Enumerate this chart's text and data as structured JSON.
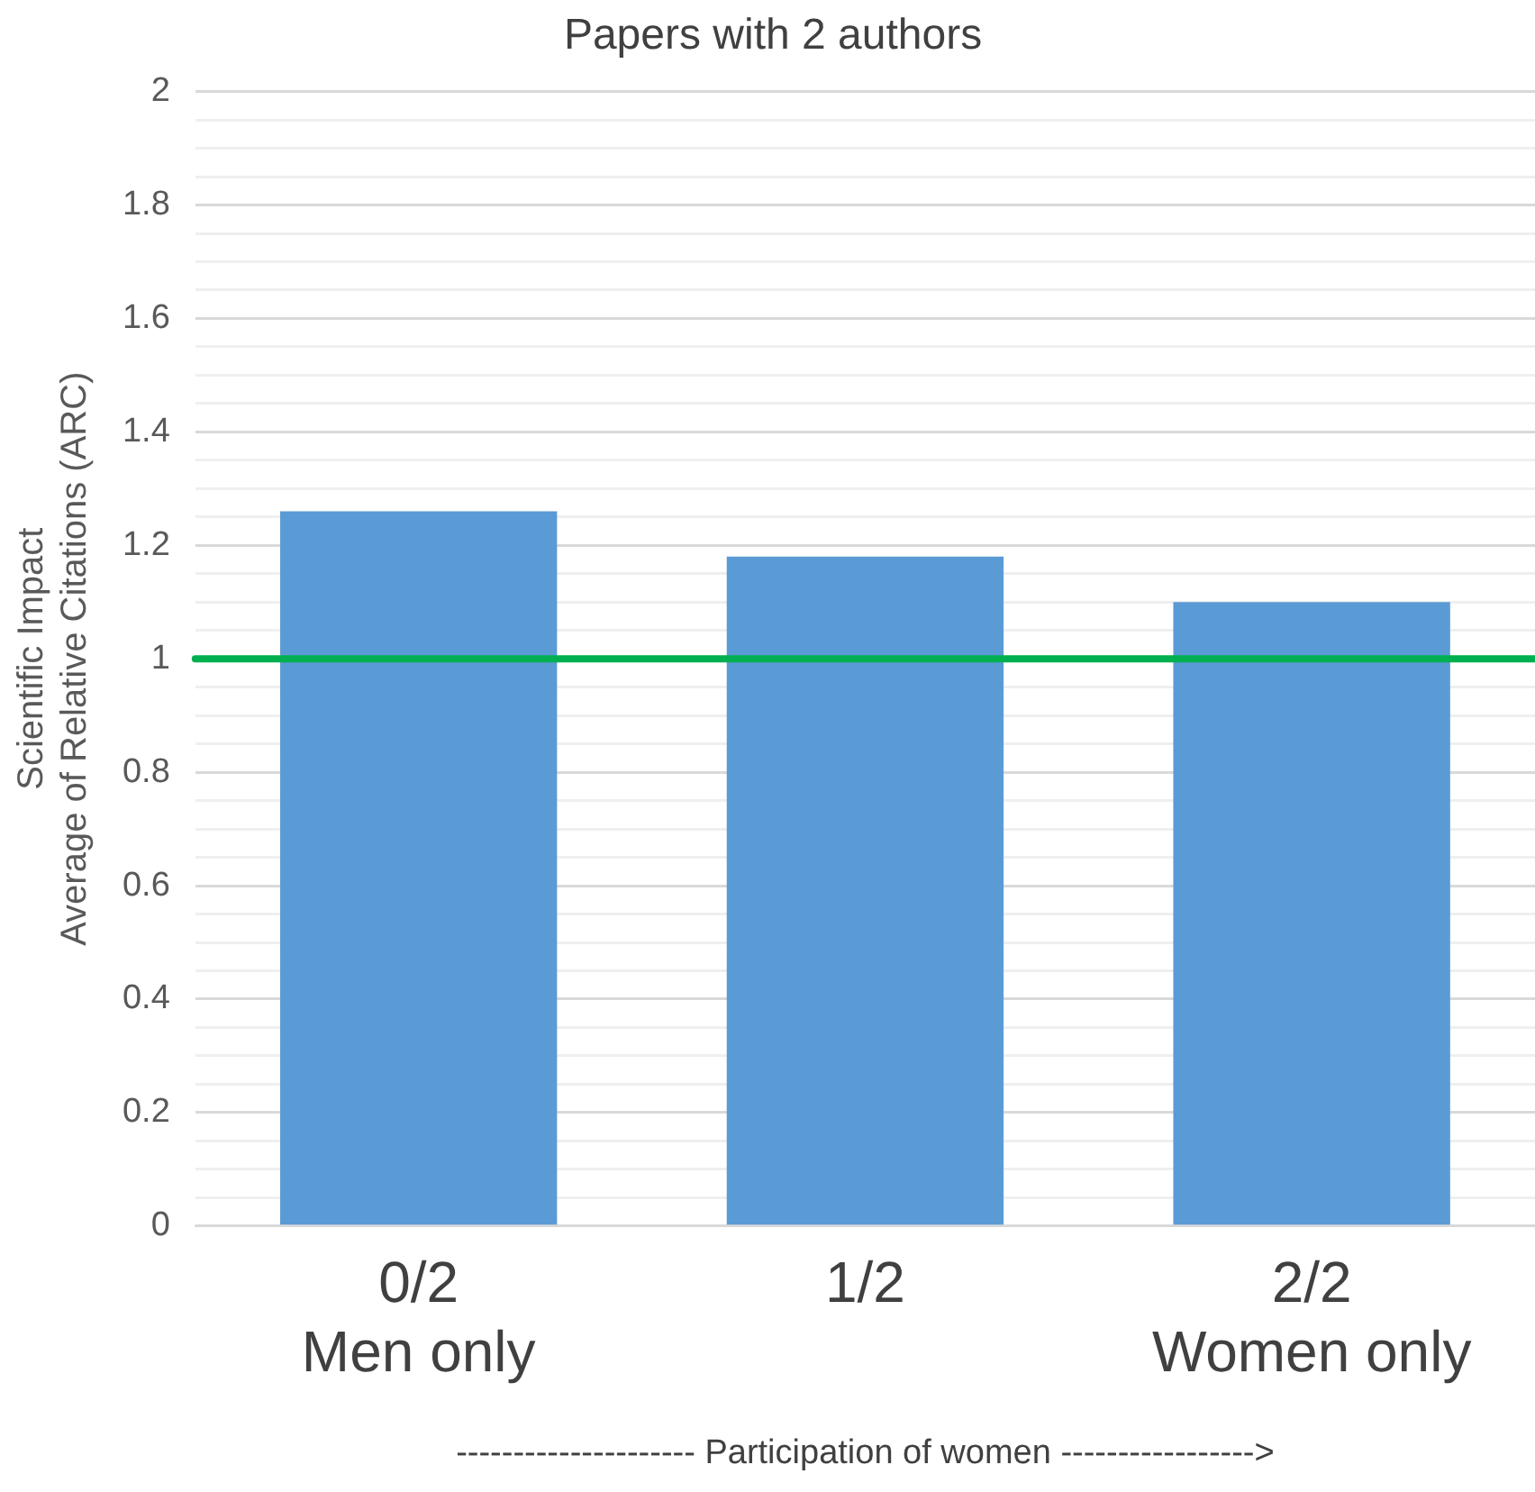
{
  "chart_data": {
    "type": "bar",
    "title": "Papers with 2 authors",
    "xlabel": "--------------------- Participation of women ----------------->",
    "ylabel": "Scientific Impact\nAverage of Relative Citations (ARC)",
    "categories": [
      "0/2\nMen only",
      "1/2",
      "2/2\nWomen only"
    ],
    "values": [
      1.26,
      1.18,
      1.1
    ],
    "color": "#5b9bd5",
    "ylim": [
      0,
      2
    ],
    "yticks": [
      0,
      {
        "value": 0.05,
        "label": null
      },
      {
        "value": 0.1,
        "label": null
      },
      {
        "value": 0.15,
        "label": null
      },
      0.2,
      {
        "value": 0.25,
        "label": null
      },
      {
        "value": 0.3,
        "label": null
      },
      {
        "value": 0.35,
        "label": null
      },
      0.4,
      {
        "value": 0.45,
        "label": null
      },
      {
        "value": 0.5,
        "label": null
      },
      {
        "value": 0.55,
        "label": null
      },
      0.6,
      {
        "value": 0.65,
        "label": null
      },
      {
        "value": 0.7,
        "label": null
      },
      {
        "value": 0.75,
        "label": null
      },
      0.8,
      {
        "value": 0.85,
        "label": null
      },
      {
        "value": 0.9,
        "label": null
      },
      {
        "value": 0.95,
        "label": null
      },
      1,
      {
        "value": 1.05,
        "label": null
      },
      {
        "value": 1.1,
        "label": null
      },
      {
        "value": 1.15,
        "label": null
      },
      1.2,
      {
        "value": 1.25,
        "label": null
      },
      {
        "value": 1.3,
        "label": null
      },
      {
        "value": 1.35,
        "label": null
      },
      1.4,
      {
        "value": 1.45,
        "label": null
      },
      {
        "value": 1.5,
        "label": null
      },
      {
        "value": 1.55,
        "label": null
      },
      1.6,
      {
        "value": 1.65,
        "label": null
      },
      {
        "value": 1.7,
        "label": null
      },
      {
        "value": 1.75,
        "label": null
      },
      1.8,
      {
        "value": 1.85,
        "label": null
      },
      {
        "value": 1.9,
        "label": null
      },
      {
        "value": 1.95,
        "label": null
      },
      2
    ],
    "grid": "y",
    "ref_lines": [
      {
        "axis": "y",
        "value": 1,
        "color": "#00b050"
      }
    ]
  }
}
